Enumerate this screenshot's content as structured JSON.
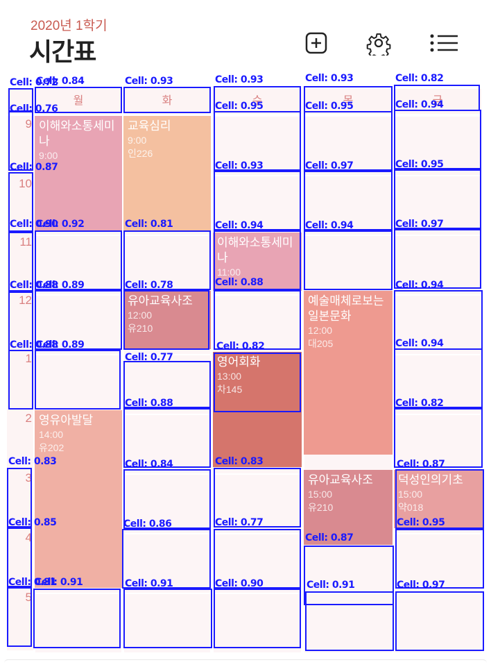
{
  "header": {
    "term": "2020년 1학기",
    "title": "시간표",
    "actions": [
      {
        "name": "add-icon",
        "label": "+"
      },
      {
        "name": "gear-icon",
        "label": "settings"
      },
      {
        "name": "list-icon",
        "label": "list"
      }
    ]
  },
  "days": [
    "월",
    "화",
    "수",
    "목",
    "금"
  ],
  "hours": [
    "9",
    "10",
    "11",
    "12",
    "1",
    "2",
    "3",
    "4",
    "5"
  ],
  "courses": [
    {
      "name": "이해와소통세미나",
      "time": "9:00",
      "room": "",
      "color": "#e8a4b4"
    },
    {
      "name": "교육심리",
      "time": "9:00",
      "room": "인226",
      "color": "#f4c0a0"
    },
    {
      "name": "이해와소통세미나",
      "time": "11:00",
      "room": "",
      "color": "#e8a4b4"
    },
    {
      "name": "유아교육사조",
      "time": "12:00",
      "room": "유210",
      "color": "#d98a90"
    },
    {
      "name": "예술매체로보는일본문화",
      "time": "12:00",
      "room": "대205",
      "color": "#ee9a90"
    },
    {
      "name": "영어회화",
      "time": "13:00",
      "room": "차145",
      "color": "#d5756c"
    },
    {
      "name": "영유아발달",
      "time": "14:00",
      "room": "유202",
      "color": "#f0b0a4"
    },
    {
      "name": "유아교육사조",
      "time": "15:00",
      "room": "유210",
      "color": "#d98a90"
    },
    {
      "name": "덕성인의기초",
      "time": "15:00",
      "room": "약018",
      "color": "#e8a0a0"
    }
  ],
  "detections": [
    "Cell: 0.72",
    "Cell: 0.84",
    "Cell: 0.93",
    "Cell: 0.93",
    "Cell: 0.93",
    "Cell: 0.82",
    "Cell: 0.76",
    "Cell: 0.95",
    "Cell: 0.95",
    "Cell: 0.94",
    "Cell: 0.87",
    "Cell: 0.93",
    "Cell: 0.97",
    "Cell: 0.95",
    "Cell: 0.90",
    "Cell: 0.92",
    "Cell: 0.81",
    "Cell: 0.94",
    "Cell: 0.94",
    "Cell: 0.97",
    "Cell: 0.88",
    "Cell: 0.89",
    "Cell: 0.78",
    "Cell: 0.88",
    "Cell: 0.94",
    "Cell: 0.88",
    "Cell: 0.89",
    "Cell: 0.77",
    "Cell: 0.82",
    "Cell: 0.94",
    "Cell: 0.88",
    "Cell: 0.82",
    "Cell: 0.83",
    "Cell: 0.84",
    "Cell: 0.83",
    "Cell: 0.87",
    "Cell: 0.85",
    "Cell: 0.86",
    "Cell: 0.77",
    "Cell: 0.87",
    "Cell: 0.95",
    "Cell: 0.81",
    "Cell: 0.91",
    "Cell: 0.91",
    "Cell: 0.90",
    "Cell: 0.91",
    "Cell: 0.97"
  ]
}
